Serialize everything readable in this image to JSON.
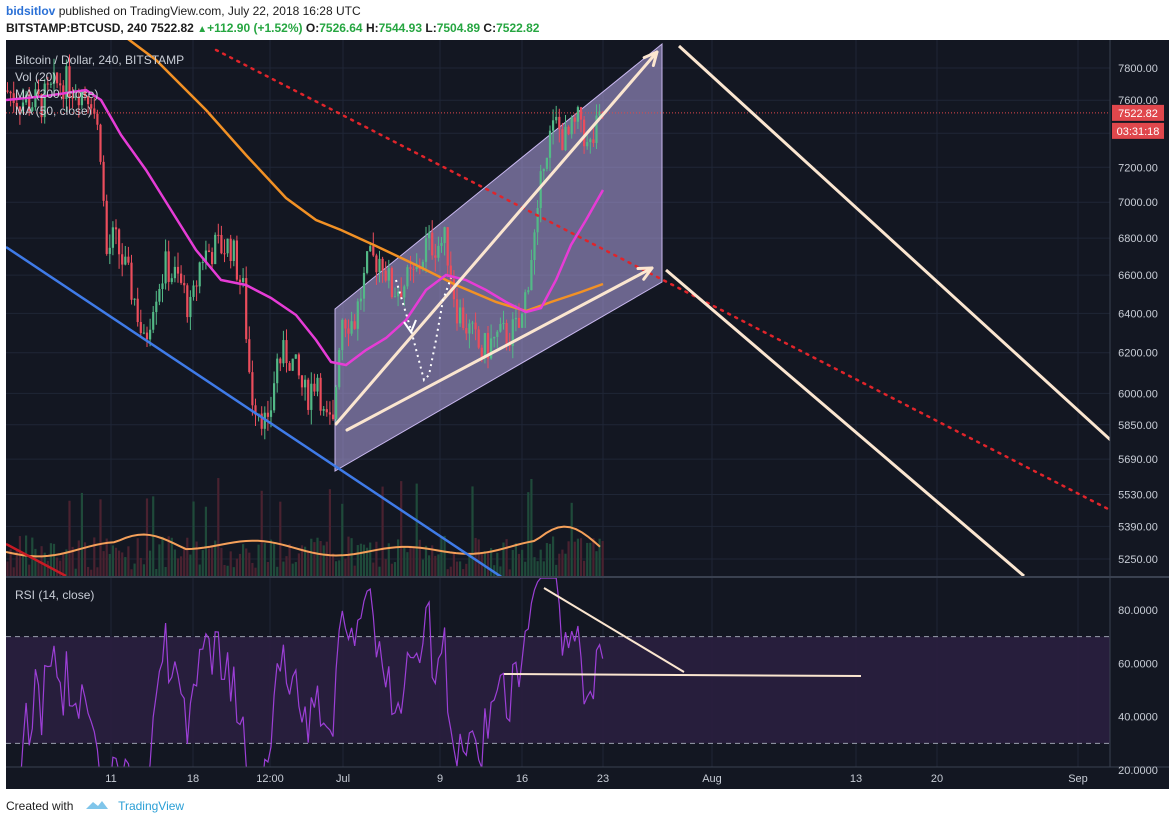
{
  "header": {
    "user": "bidsitlov",
    "published": "published on TradingView.com, July 22, 2018 16:28 UTC",
    "symbol": "BITSTAMP:BTCUSD, 240",
    "price": "7522.82",
    "change_arrow": "▲",
    "change": "+112.90 (+1.52%)",
    "o_label": "O:",
    "o_val": "7526.64",
    "h_label": "H:",
    "h_val": "7544.93",
    "l_label": "L:",
    "l_val": "7504.89",
    "c_label": "C:",
    "c_val": "7522.82"
  },
  "legend": {
    "title": "Bitcoin / Dollar, 240, BITSTAMP",
    "vol": "Vol (20)",
    "ma200": "MA (200, close)",
    "ma50": "MA (50, close)",
    "rsi": "RSI (14, close)"
  },
  "price_tag": {
    "price": "7522.82",
    "countdown": "03:31:18",
    "color": "#e0474c"
  },
  "footer": {
    "created": "Created with",
    "brand": "TradingView"
  },
  "colors": {
    "background": "#131722",
    "ma200": "#f29125",
    "ma50": "#e63cd6",
    "vol_ma": "#f5a05a",
    "rsi": "#9c3fd6",
    "channel_fill": "#b4a5e6",
    "annotation": "#fbe6d0",
    "downtrend_blue": "#3f7be8",
    "dotted_red": "#e0242a"
  },
  "chart_data": [
    {
      "type": "candlestick",
      "title": "Bitcoin / Dollar, 240, BITSTAMP",
      "x_tick_labels": [
        "11",
        "18",
        "12:00",
        "Jul",
        "9",
        "16",
        "23",
        "Aug",
        "13",
        "20",
        "Sep"
      ],
      "y_tick_labels": [
        "7800.00",
        "7600.00",
        "7400.00",
        "7200.00",
        "7000.00",
        "6800.00",
        "6600.00",
        "6400.00",
        "6200.00",
        "6000.00",
        "5850.00",
        "5690.00",
        "5530.00",
        "5390.00",
        "5250.00"
      ],
      "ylim": [
        5160,
        7900
      ],
      "y_scale": "log",
      "last_price": 7522.82,
      "series": [
        {
          "name": "MA (200, close)",
          "values_approx": [
            8300,
            7800,
            7300,
            6900,
            6750,
            6600,
            6530,
            6520,
            6560
          ]
        },
        {
          "name": "MA (50, close)",
          "values_approx": [
            7620,
            7700,
            7200,
            6720,
            6200,
            6100,
            6300,
            6480,
            6420,
            7050
          ]
        }
      ]
    },
    {
      "type": "line",
      "title": "RSI (14, close)",
      "y_tick_labels": [
        "80.0000",
        "60.0000",
        "40.0000",
        "20.0000"
      ],
      "ylim": [
        10,
        95
      ],
      "bands": [
        30,
        70
      ]
    }
  ]
}
